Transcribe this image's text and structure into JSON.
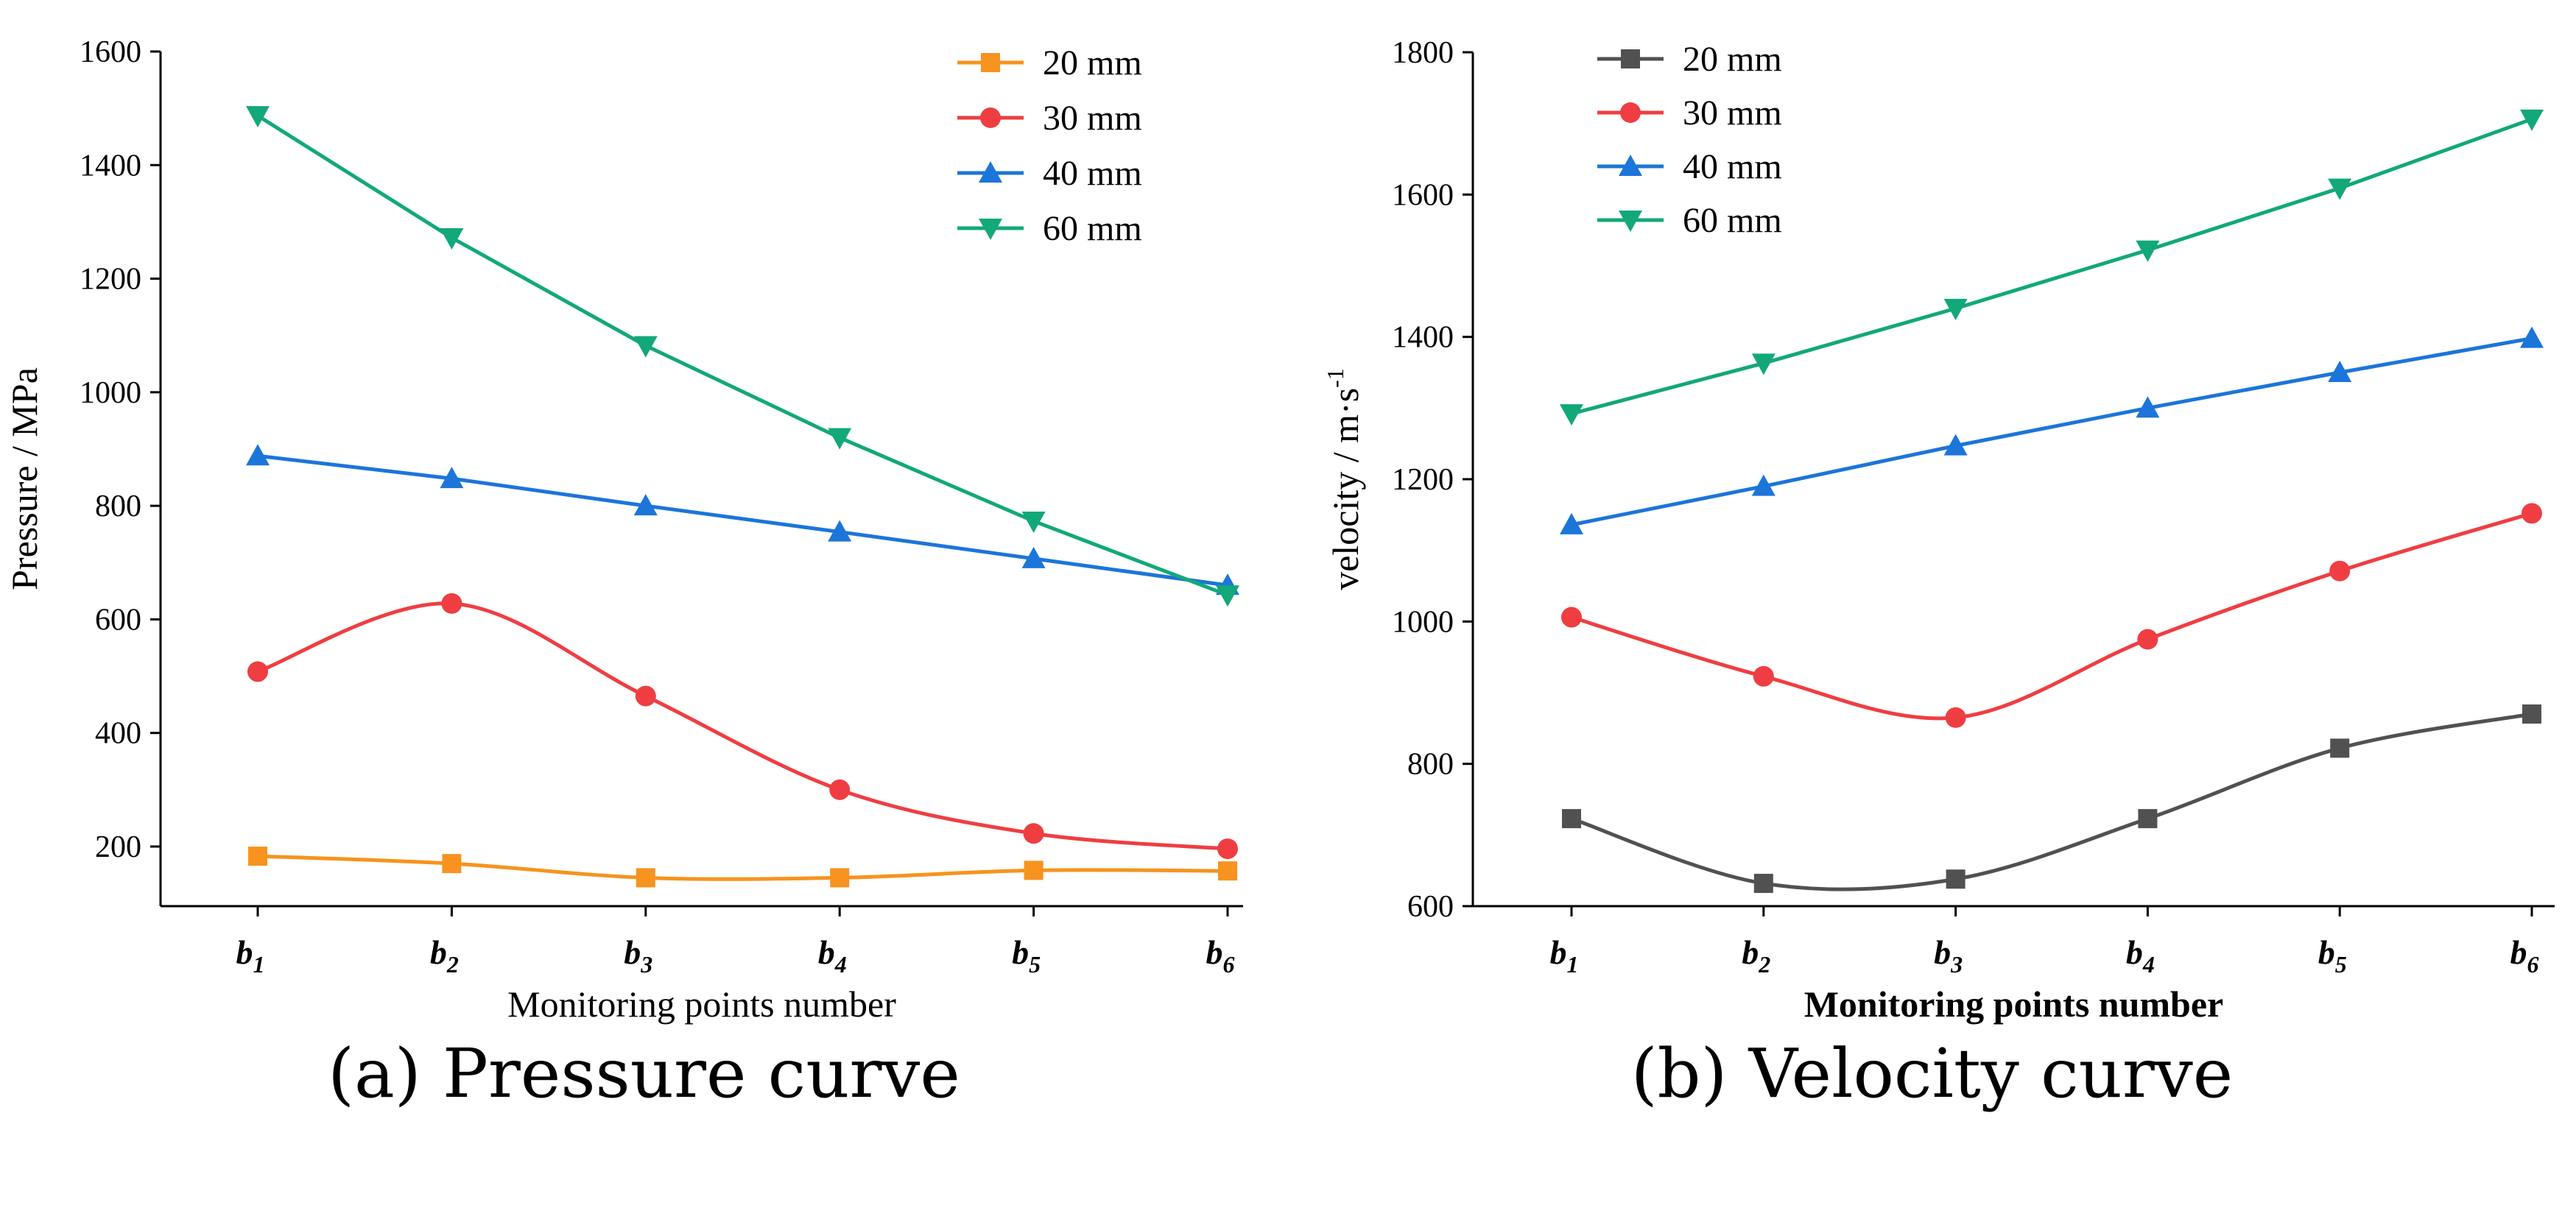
{
  "chart_data": [
    {
      "type": "line",
      "title": "",
      "xlabel": "Monitoring points number",
      "ylabel": "Pressure / MPa",
      "categories": [
        "b1",
        "b2",
        "b3",
        "b4",
        "b5",
        "b6"
      ],
      "category_labels": [
        {
          "base": "b",
          "sub": "1"
        },
        {
          "base": "b",
          "sub": "2"
        },
        {
          "base": "b",
          "sub": "3"
        },
        {
          "base": "b",
          "sub": "4"
        },
        {
          "base": "b",
          "sub": "5"
        },
        {
          "base": "b",
          "sub": "6"
        }
      ],
      "ylim": [
        95,
        1600
      ],
      "yticks": [
        200,
        400,
        600,
        800,
        1000,
        1200,
        1400,
        1600
      ],
      "legend_position": "top-right",
      "smooth": [
        true,
        true,
        false,
        false
      ],
      "series": [
        {
          "name": "20 mm",
          "color": "#f7931e",
          "marker": "square",
          "values": [
            183,
            170,
            145,
            145,
            158,
            157
          ]
        },
        {
          "name": "30 mm",
          "color": "#ef3e42",
          "marker": "circle",
          "values": [
            508,
            628,
            465,
            300,
            223,
            196
          ]
        },
        {
          "name": "40 mm",
          "color": "#1c75d9",
          "marker": "triangle-up",
          "values": [
            888,
            848,
            800,
            754,
            707,
            660
          ]
        },
        {
          "name": "60 mm",
          "color": "#12a87a",
          "marker": "triangle-down",
          "values": [
            1487,
            1272,
            1082,
            920,
            773,
            643
          ]
        }
      ],
      "caption": "(a) Pressure curve"
    },
    {
      "type": "line",
      "title": "",
      "xlabel": "Monitoring points number",
      "ylabel": "velocity / m·s",
      "ylabel_sup": "-1",
      "categories": [
        "b1",
        "b2",
        "b3",
        "b4",
        "b5",
        "b6"
      ],
      "category_labels": [
        {
          "base": "b",
          "sub": "1"
        },
        {
          "base": "b",
          "sub": "2"
        },
        {
          "base": "b",
          "sub": "3"
        },
        {
          "base": "b",
          "sub": "4"
        },
        {
          "base": "b",
          "sub": "5"
        },
        {
          "base": "b",
          "sub": "6"
        }
      ],
      "ylim": [
        600,
        1800
      ],
      "yticks": [
        600,
        800,
        1000,
        1200,
        1400,
        1600,
        1800
      ],
      "legend_position": "top-left",
      "smooth": [
        true,
        true,
        false,
        false
      ],
      "series": [
        {
          "name": "20 mm",
          "color": "#515151",
          "marker": "square",
          "values": [
            723,
            632,
            638,
            723,
            822,
            870
          ]
        },
        {
          "name": "30 mm",
          "color": "#ef3e42",
          "marker": "circle",
          "values": [
            1006,
            923,
            865,
            975,
            1071,
            1152
          ]
        },
        {
          "name": "40 mm",
          "color": "#1c75d9",
          "marker": "triangle-up",
          "values": [
            1136,
            1190,
            1247,
            1300,
            1350,
            1398
          ]
        },
        {
          "name": "60 mm",
          "color": "#12a87a",
          "marker": "triangle-down",
          "values": [
            1292,
            1363,
            1440,
            1522,
            1609,
            1706
          ]
        }
      ],
      "caption": "(b) Velocity curve"
    }
  ]
}
